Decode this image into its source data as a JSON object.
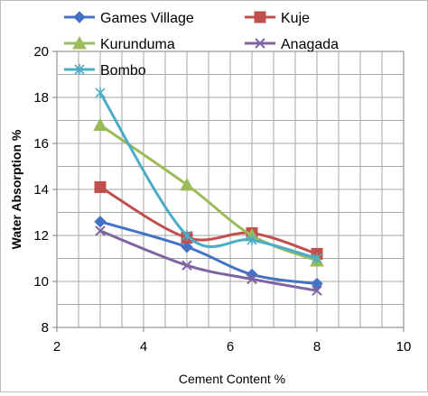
{
  "chart_data": {
    "type": "line",
    "title": "",
    "xlabel": "Cement Content %",
    "ylabel": "Water Absorption %",
    "xlim": [
      2,
      10
    ],
    "ylim": [
      8,
      20
    ],
    "xticks": [
      2,
      4,
      6,
      8,
      10
    ],
    "yticks": [
      8,
      10,
      12,
      14,
      16,
      18,
      20
    ],
    "grid": true,
    "legend_position": "top",
    "series": [
      {
        "name": "Games Village",
        "color": "#4472C4",
        "marker": "diamond",
        "x": [
          3,
          5,
          6.5,
          8
        ],
        "y": [
          12.6,
          11.5,
          10.3,
          9.9
        ]
      },
      {
        "name": "Kuje",
        "color": "#C0504D",
        "marker": "square",
        "x": [
          3,
          5,
          6.5,
          8
        ],
        "y": [
          14.1,
          11.9,
          12.1,
          11.2
        ]
      },
      {
        "name": "Kurunduma",
        "color": "#9BBB59",
        "marker": "triangle",
        "x": [
          3,
          5,
          6.5,
          8
        ],
        "y": [
          16.8,
          14.2,
          12.0,
          10.9
        ]
      },
      {
        "name": "Anagada",
        "color": "#8064A2",
        "marker": "x",
        "x": [
          3,
          5,
          6.5,
          8
        ],
        "y": [
          12.2,
          10.7,
          10.1,
          9.6
        ]
      },
      {
        "name": "Bombo",
        "color": "#4BACC6",
        "marker": "star",
        "x": [
          3,
          5,
          6.5,
          8
        ],
        "y": [
          18.2,
          12.0,
          11.8,
          11.0
        ]
      }
    ]
  }
}
